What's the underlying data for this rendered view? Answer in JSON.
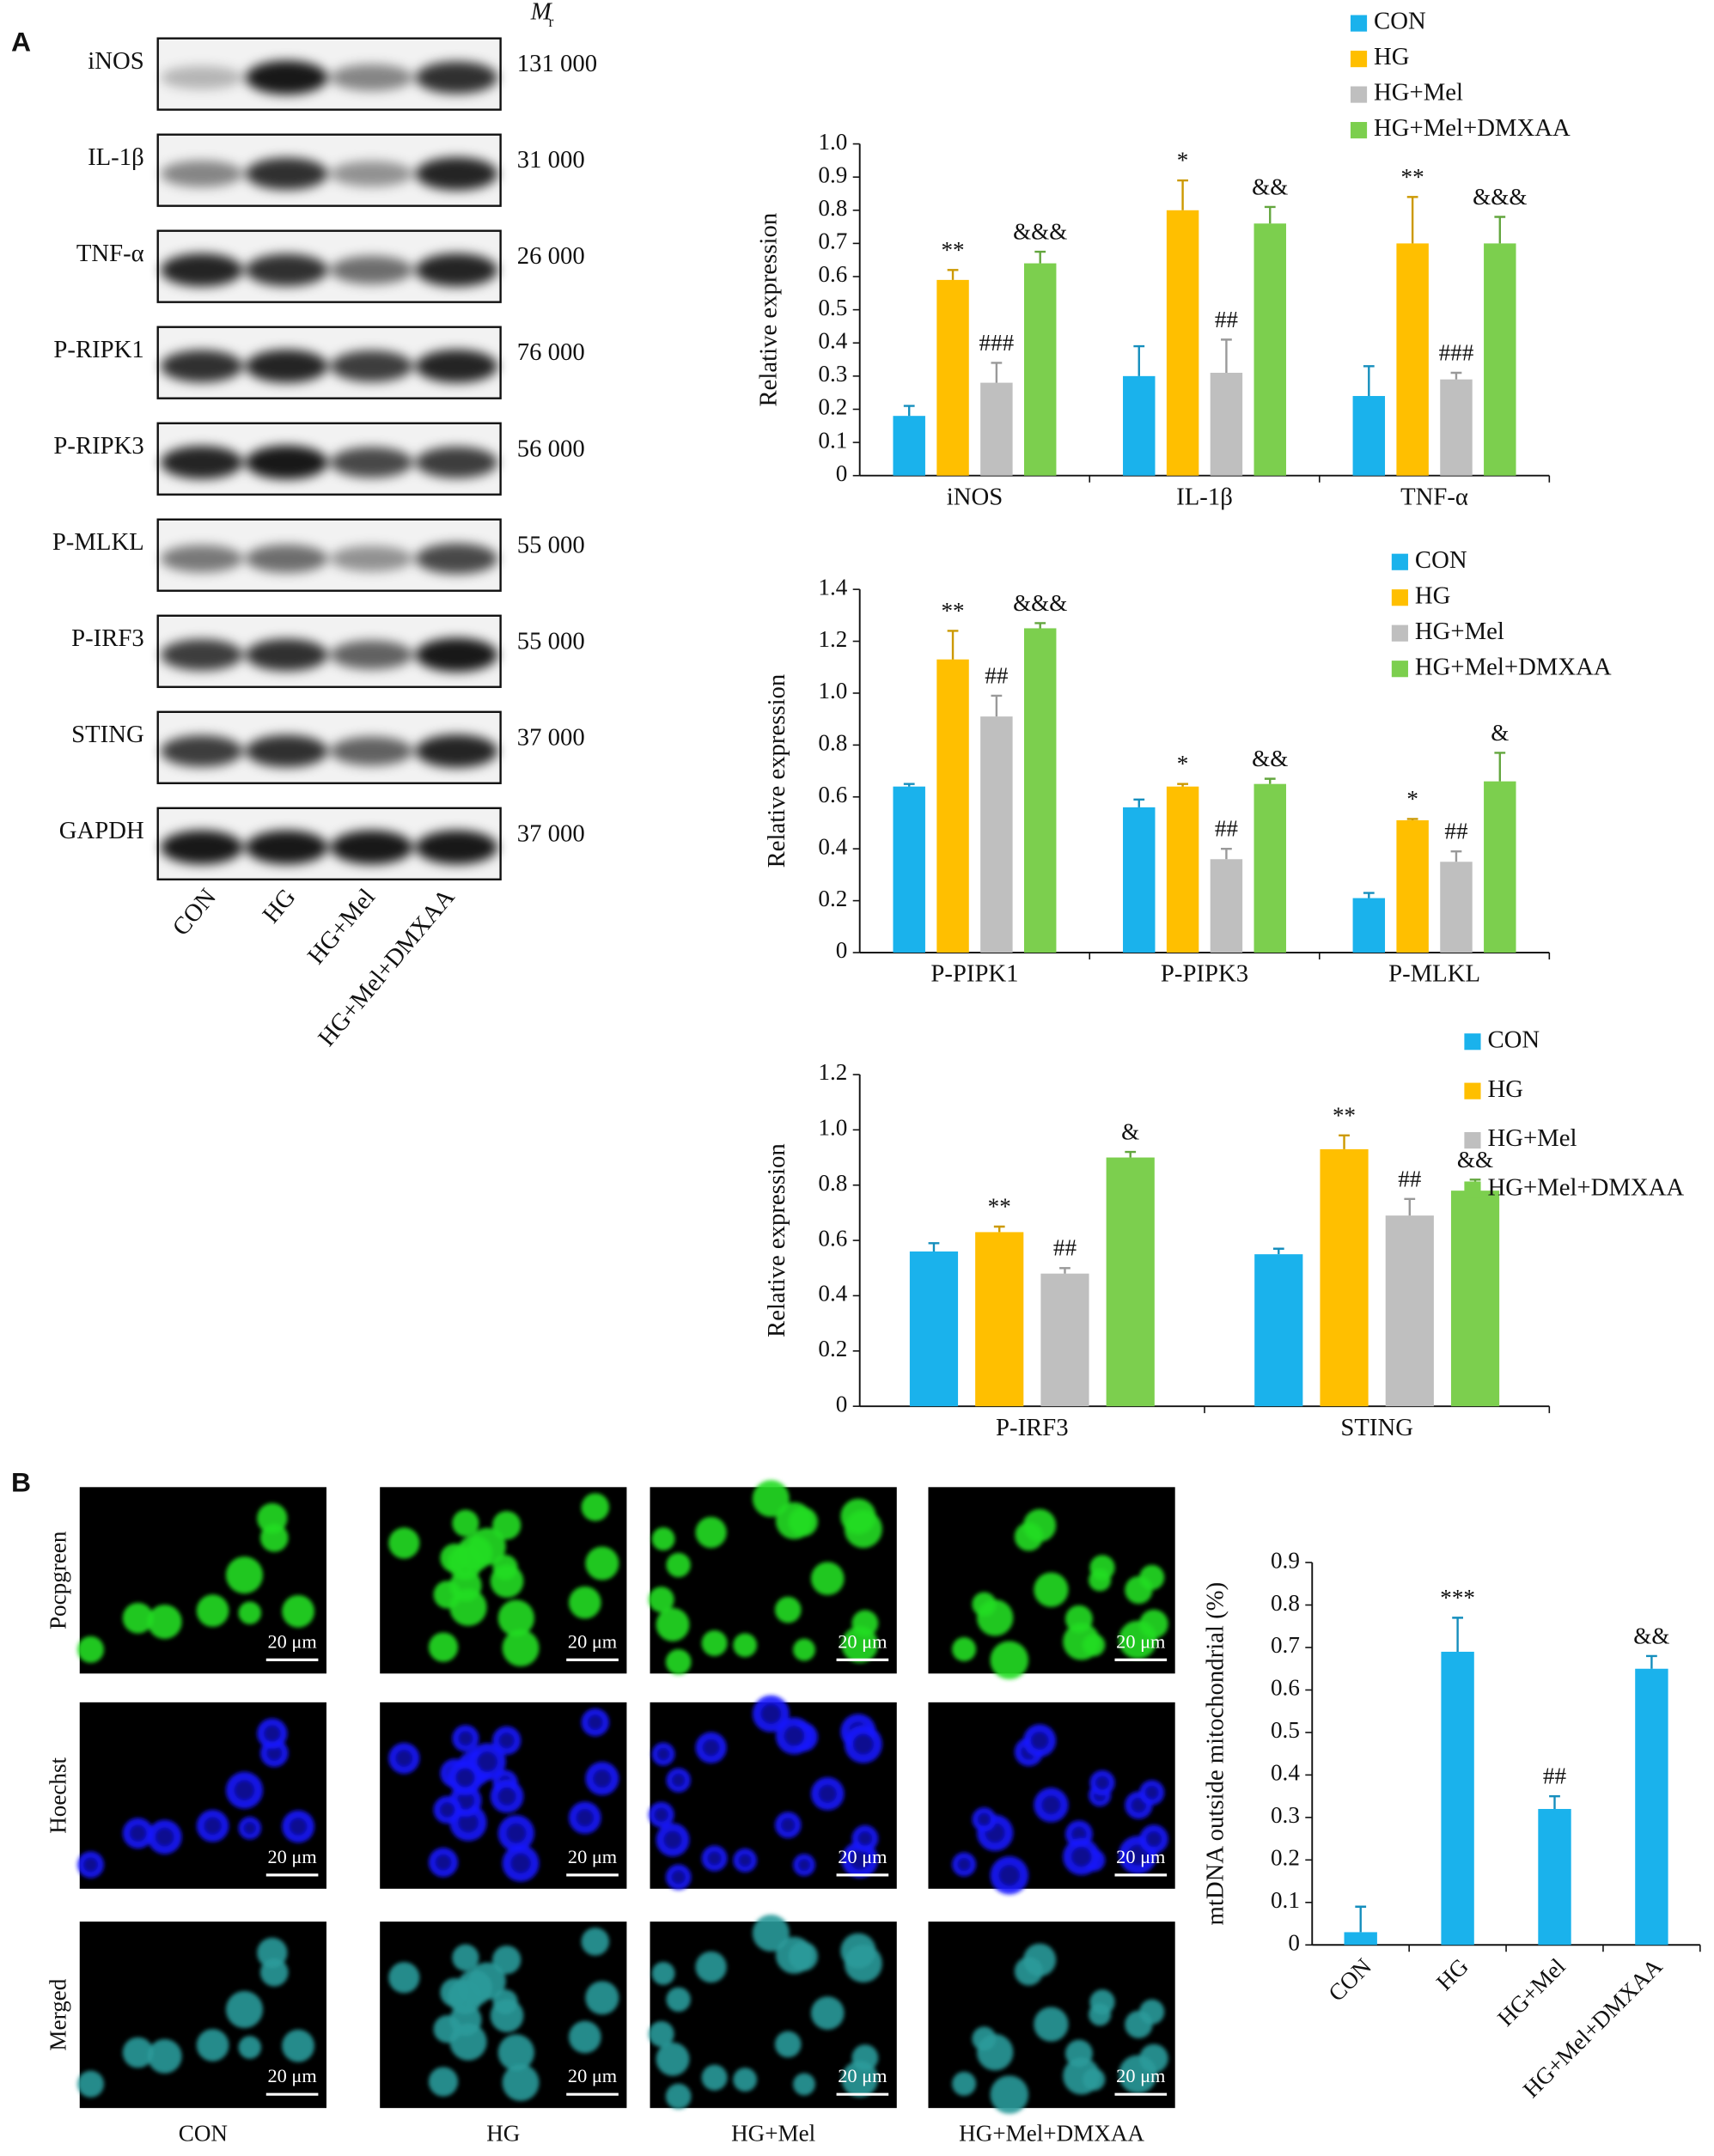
{
  "panel_labels": [
    "A",
    "B"
  ],
  "blot": {
    "mr_header": "M",
    "mr_sub": "r",
    "rows": [
      {
        "label": "iNOS",
        "mr": "131 000"
      },
      {
        "label": "IL-1β",
        "mr": "31 000"
      },
      {
        "label": "TNF-α",
        "mr": "26 000"
      },
      {
        "label": "P-RIPK1",
        "mr": "76 000"
      },
      {
        "label": "P-RIPK3",
        "mr": "56 000"
      },
      {
        "label": "P-MLKL",
        "mr": "55 000"
      },
      {
        "label": "P-IRF3",
        "mr": "55 000"
      },
      {
        "label": "STING",
        "mr": "37 000"
      },
      {
        "label": "GAPDH",
        "mr": "37 000"
      }
    ],
    "lanes": [
      "CON",
      "HG",
      "HG+Mel",
      "HG+Mel+DMXAA"
    ]
  },
  "microscopy": {
    "rows": [
      "Pocpgreen",
      "Hoechst",
      "Merged"
    ],
    "columns": [
      "CON",
      "HG",
      "HG+Mel",
      "HG+Mel+DMXAA"
    ],
    "scale_bar": "20 μm"
  },
  "chart_data": [
    {
      "type": "bar",
      "y_label": "Relative expression",
      "categories": [
        "iNOS",
        "IL-1β",
        "TNF-α"
      ],
      "series": [
        {
          "name": "CON",
          "color": "#1ab2ec",
          "values": [
            0.18,
            0.3,
            0.24
          ],
          "errors": [
            0.03,
            0.09,
            0.09
          ],
          "annotations": [
            null,
            null,
            null
          ]
        },
        {
          "name": "HG",
          "color": "#ffbf00",
          "values": [
            0.59,
            0.8,
            0.7
          ],
          "errors": [
            0.03,
            0.09,
            0.14
          ],
          "annotations": [
            "**",
            "*",
            "**"
          ]
        },
        {
          "name": "HG+Mel",
          "color": "#bfbfbf",
          "values": [
            0.28,
            0.31,
            0.29
          ],
          "errors": [
            0.06,
            0.1,
            0.02
          ],
          "annotations": [
            "###",
            "##",
            "###"
          ]
        },
        {
          "name": "HG+Mel+DMXAA",
          "color": "#7ccf4e",
          "values": [
            0.64,
            0.76,
            0.7
          ],
          "errors": [
            0.035,
            0.05,
            0.08
          ],
          "annotations": [
            "&&&",
            "&&",
            "&&&"
          ]
        }
      ],
      "ylim": [
        0,
        1
      ],
      "yticks": [
        0,
        0.1,
        0.2,
        0.3,
        0.4,
        0.5,
        0.6,
        0.7,
        0.8,
        0.9,
        {
          "value": 1,
          "label": "1.0"
        }
      ]
    },
    {
      "type": "bar",
      "y_label": "Relative expression",
      "categories": [
        "P-PIPK1",
        "P-PIPK3",
        "P-MLKL"
      ],
      "series": [
        {
          "name": "CON",
          "color": "#1ab2ec",
          "values": [
            0.64,
            0.56,
            0.21
          ],
          "errors": [
            0.01,
            0.03,
            0.02
          ],
          "annotations": [
            null,
            null,
            null
          ]
        },
        {
          "name": "HG",
          "color": "#ffbf00",
          "values": [
            1.13,
            0.64,
            0.51
          ],
          "errors": [
            0.11,
            0.01,
            0.005
          ],
          "annotations": [
            "**",
            "*",
            "*"
          ]
        },
        {
          "name": "HG+Mel",
          "color": "#bfbfbf",
          "values": [
            0.91,
            0.36,
            0.35
          ],
          "errors": [
            0.08,
            0.04,
            0.04
          ],
          "annotations": [
            "##",
            "##",
            "##"
          ]
        },
        {
          "name": "HG+Mel+DMXAA",
          "color": "#7ccf4e",
          "values": [
            1.25,
            0.65,
            0.66
          ],
          "errors": [
            0.02,
            0.02,
            0.11
          ],
          "annotations": [
            "&&&",
            "&&",
            "&"
          ]
        }
      ],
      "ylim": [
        0,
        1.4
      ],
      "yticks": [
        0,
        0.2,
        0.4,
        0.6,
        0.8,
        {
          "value": 1,
          "label": "1.0"
        },
        1.2,
        1.4
      ]
    },
    {
      "type": "bar",
      "y_label": "Relative expression",
      "categories": [
        "P-IRF3",
        "STING"
      ],
      "series": [
        {
          "name": "CON",
          "color": "#1ab2ec",
          "values": [
            0.56,
            0.55
          ],
          "errors": [
            0.03,
            0.02
          ],
          "annotations": [
            null,
            null
          ]
        },
        {
          "name": "HG",
          "color": "#ffbf00",
          "values": [
            0.63,
            0.93
          ],
          "errors": [
            0.02,
            0.05
          ],
          "annotations": [
            "**",
            "**"
          ]
        },
        {
          "name": "HG+Mel",
          "color": "#bfbfbf",
          "values": [
            0.48,
            0.69
          ],
          "errors": [
            0.02,
            0.06
          ],
          "annotations": [
            "##",
            "##"
          ]
        },
        {
          "name": "HG+Mel+DMXAA",
          "color": "#7ccf4e",
          "values": [
            0.9,
            0.78
          ],
          "errors": [
            0.02,
            0.04
          ],
          "annotations": [
            "&",
            "&&"
          ]
        }
      ],
      "ylim": [
        0,
        1.2
      ],
      "yticks": [
        0,
        0.2,
        0.4,
        0.6,
        0.8,
        {
          "value": 1,
          "label": "1.0"
        },
        1.2
      ]
    },
    {
      "type": "bar",
      "y_label": "mtDNA outside mitochondrial (%)",
      "categories": [
        "CON",
        "HG",
        "HG+Mel",
        "HG+Mel+DMXAA"
      ],
      "color": "#1ab2ec",
      "values": [
        0.03,
        0.69,
        0.32,
        0.65
      ],
      "errors": [
        0.06,
        0.08,
        0.03,
        0.03
      ],
      "annotations": [
        null,
        "***",
        "##",
        "&&"
      ],
      "ylim": [
        0,
        0.9
      ],
      "yticks": [
        0,
        0.1,
        0.2,
        0.3,
        0.4,
        0.5,
        0.6,
        0.7,
        0.8,
        0.9
      ]
    }
  ]
}
